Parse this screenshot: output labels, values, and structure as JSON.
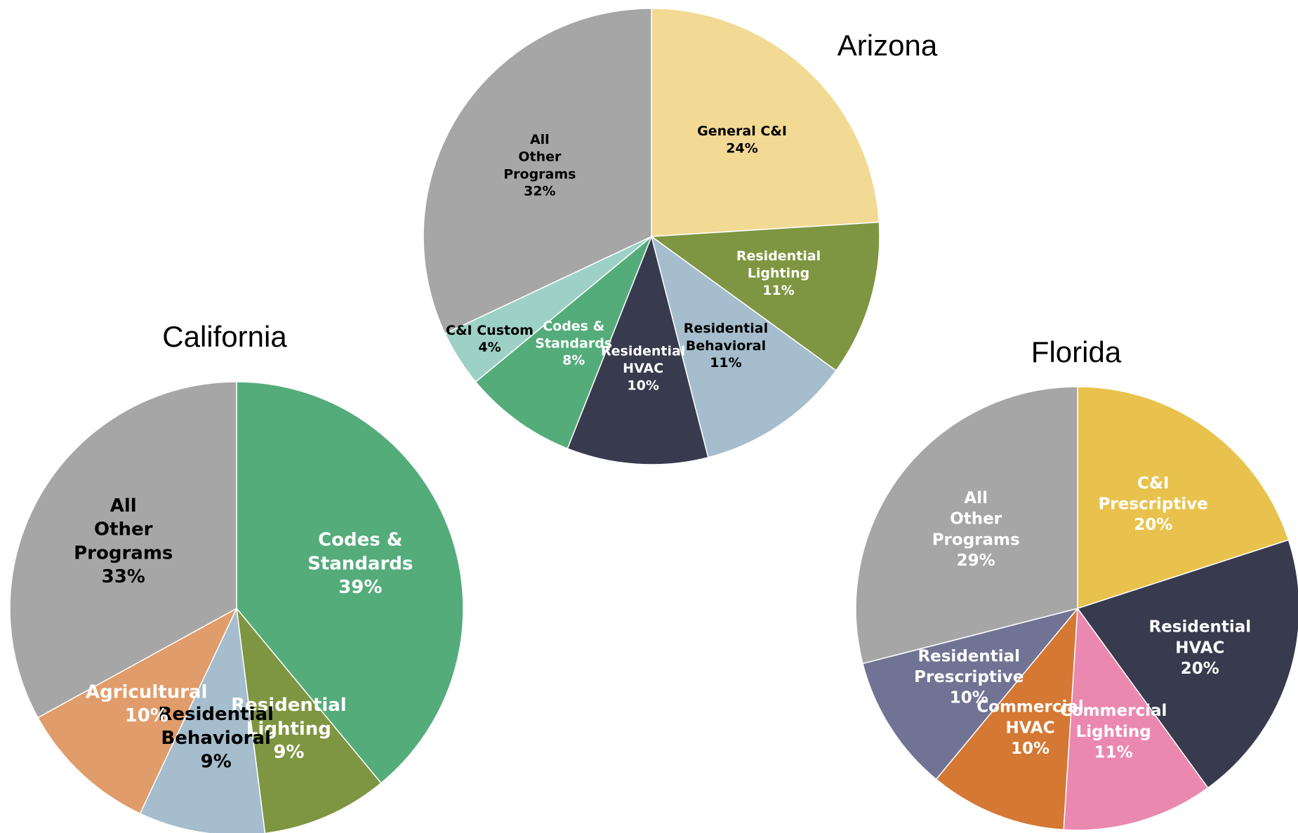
{
  "chart_data": [
    {
      "type": "pie",
      "title": "Arizona",
      "categories": [
        "General C&I",
        "Residential Lighting",
        "Residential Behavioral",
        "Residential HVAC",
        "Codes & Standards",
        "C&I Custom",
        "All Other Programs"
      ],
      "values": [
        24,
        11,
        11,
        10,
        8,
        4,
        32
      ],
      "value_labels": [
        "24%",
        "11%",
        "11%",
        "10%",
        "8%",
        "4%",
        "32%"
      ],
      "colors": [
        "#F2DA94",
        "#7E9641",
        "#A5BDCC",
        "#383A4E",
        "#54AC7A",
        "#9ED1C5",
        "#A6A6A6"
      ],
      "label_colors": [
        "#000000",
        "#ffffff",
        "#000000",
        "#ffffff",
        "#ffffff",
        "#000000",
        "#000000"
      ]
    },
    {
      "type": "pie",
      "title": "California",
      "categories": [
        "Codes & Standards",
        "Residential Lighting",
        "Residential Behavioral",
        "Agricultural",
        "All Other Programs"
      ],
      "values": [
        39,
        9,
        9,
        10,
        33
      ],
      "value_labels": [
        "39%",
        "9%",
        "9%",
        "10%",
        "33%"
      ],
      "colors": [
        "#54AC7A",
        "#7E9641",
        "#A5BDCC",
        "#E09C6A",
        "#A6A6A6"
      ],
      "label_colors": [
        "#ffffff",
        "#ffffff",
        "#000000",
        "#ffffff",
        "#000000"
      ]
    },
    {
      "type": "pie",
      "title": "Florida",
      "categories": [
        "C&I Prescriptive",
        "Residential HVAC",
        "Commercial Lighting",
        "Commercial HVAC",
        "Residential Prescriptive",
        "All Other Programs"
      ],
      "values": [
        20,
        20,
        11,
        10,
        10,
        29
      ],
      "value_labels": [
        "20%",
        "20%",
        "11%",
        "10%",
        "10%",
        "29%"
      ],
      "colors": [
        "#E8C24C",
        "#383A4E",
        "#EA88B0",
        "#D47834",
        "#717394",
        "#A6A6A6"
      ],
      "label_colors": [
        "#ffffff",
        "#ffffff",
        "#ffffff",
        "#ffffff",
        "#ffffff",
        "#ffffff"
      ]
    }
  ]
}
